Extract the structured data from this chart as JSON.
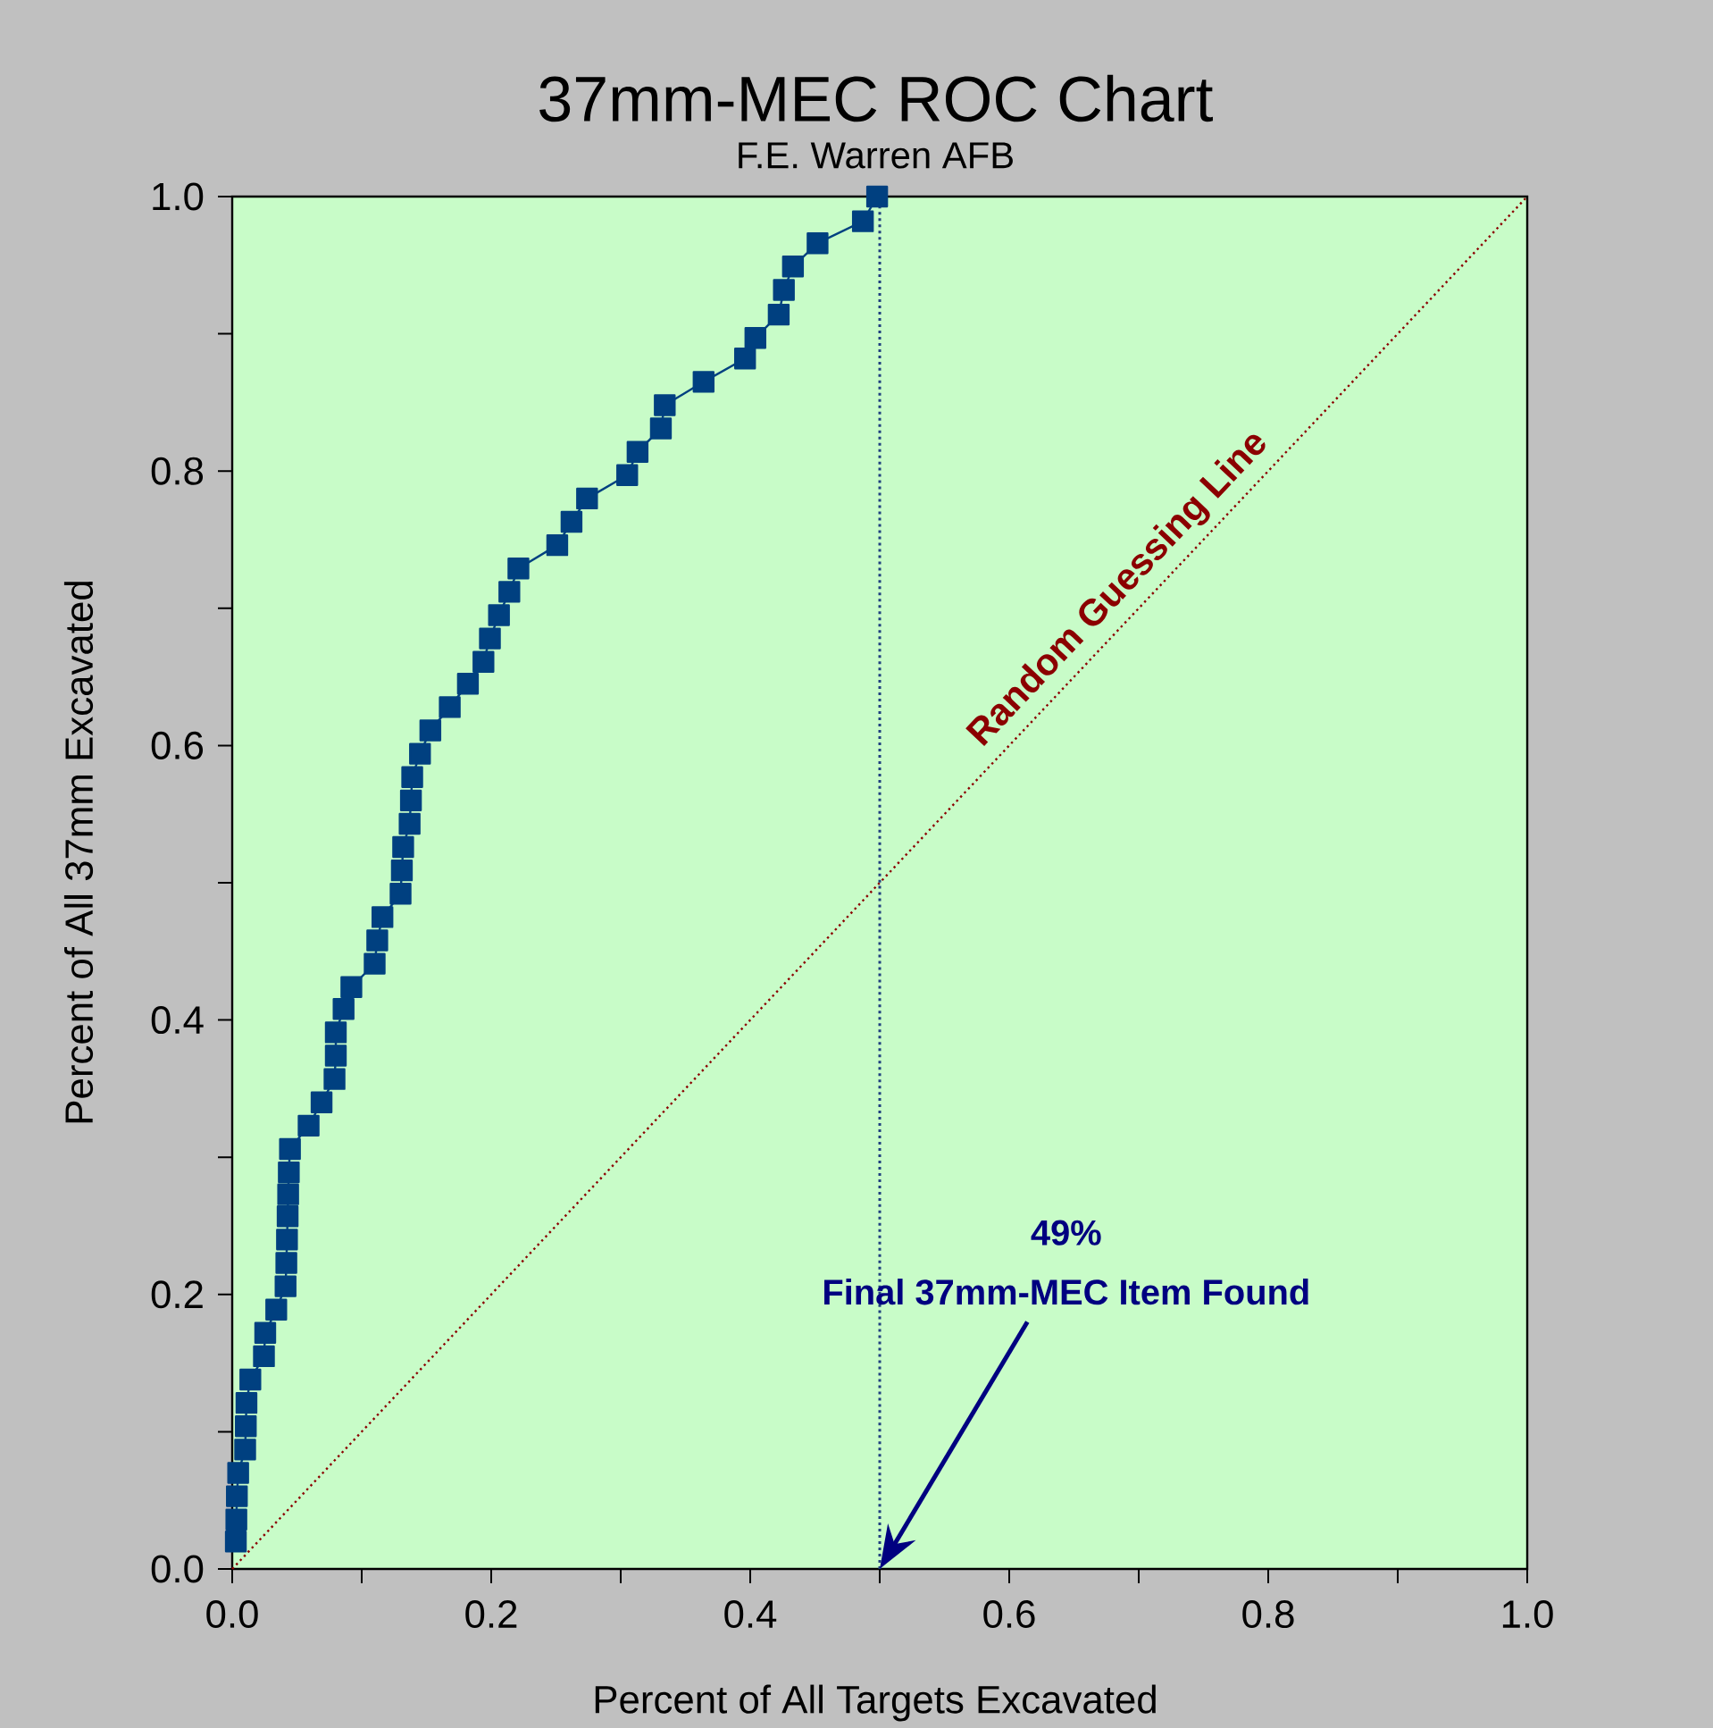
{
  "chart_data": {
    "type": "line",
    "title": "37mm-MEC ROC Chart",
    "subtitle": "F.E. Warren AFB",
    "xlabel": "Percent of All Targets Excavated",
    "ylabel": "Percent of All 37mm Excavated",
    "xlim": [
      0,
      1
    ],
    "ylim": [
      0,
      1
    ],
    "xticks": [
      {
        "value": 0,
        "label": "0.0"
      },
      {
        "value": 0.1,
        "label": null
      },
      {
        "value": 0.2,
        "label": "0.2"
      },
      {
        "value": 0.3,
        "label": null
      },
      {
        "value": 0.4,
        "label": "0.4"
      },
      {
        "value": 0.5,
        "label": null
      },
      {
        "value": 0.6,
        "label": "0.6"
      },
      {
        "value": 0.7,
        "label": null
      },
      {
        "value": 0.8,
        "label": "0.8"
      },
      {
        "value": 0.9,
        "label": null
      },
      {
        "value": 1,
        "label": "1.0"
      }
    ],
    "yticks": [
      {
        "value": 0,
        "label": "0.0"
      },
      {
        "value": 0.1,
        "label": null
      },
      {
        "value": 0.2,
        "label": "0.2"
      },
      {
        "value": 0.3,
        "label": null
      },
      {
        "value": 0.4,
        "label": "0.4"
      },
      {
        "value": 0.5,
        "label": null
      },
      {
        "value": 0.6,
        "label": "0.6"
      },
      {
        "value": 0.7,
        "label": null
      },
      {
        "value": 0.8,
        "label": "0.8"
      },
      {
        "value": 0.9,
        "label": null
      },
      {
        "value": 1,
        "label": "1.0"
      }
    ],
    "marker": "square",
    "line_style": "solid",
    "series": [
      {
        "color": "#004080",
        "x": [
          0.0028,
          0.0032,
          0.0036,
          0.0046,
          0.01,
          0.0105,
          0.011,
          0.014,
          0.0245,
          0.0255,
          0.034,
          0.0412,
          0.0418,
          0.0423,
          0.0428,
          0.0432,
          0.0437,
          0.0446,
          0.059,
          0.069,
          0.079,
          0.08,
          0.08,
          0.086,
          0.092,
          0.11,
          0.112,
          0.116,
          0.13,
          0.131,
          0.132,
          0.137,
          0.138,
          0.139,
          0.145,
          0.153,
          0.168,
          0.182,
          0.194,
          0.199,
          0.206,
          0.214,
          0.221,
          0.251,
          0.262,
          0.274,
          0.305,
          0.313,
          0.331,
          0.334,
          0.364,
          0.396,
          0.404,
          0.422,
          0.426,
          0.433,
          0.452,
          0.487,
          0.498
        ],
        "values": [
          0.02,
          0.036,
          0.053,
          0.07,
          0.087,
          0.104,
          0.121,
          0.138,
          0.155,
          0.172,
          0.189,
          0.206,
          0.223,
          0.24,
          0.257,
          0.273,
          0.289,
          0.306,
          0.323,
          0.34,
          0.357,
          0.374,
          0.391,
          0.408,
          0.424,
          0.441,
          0.458,
          0.475,
          0.492,
          0.509,
          0.526,
          0.543,
          0.56,
          0.577,
          0.594,
          0.611,
          0.628,
          0.645,
          0.661,
          0.678,
          0.695,
          0.712,
          0.729,
          0.746,
          0.763,
          0.78,
          0.797,
          0.814,
          0.831,
          0.848,
          0.865,
          0.882,
          0.897,
          0.914,
          0.932,
          0.949,
          0.966,
          0.982,
          1.0
        ]
      },
      {
        "name": "Random Guessing Line",
        "type": "line",
        "color": "#8b0000",
        "x": [
          0,
          1
        ],
        "values": [
          0,
          1
        ],
        "line_style": "dotted",
        "marker": "none"
      }
    ],
    "ref_lines": [
      {
        "axis": "x",
        "value": 0.5,
        "color": "#1f3f7f",
        "line_style": "dotted"
      }
    ],
    "annotations": [
      "49%",
      "Final 37mm-MEC Item Found"
    ]
  }
}
